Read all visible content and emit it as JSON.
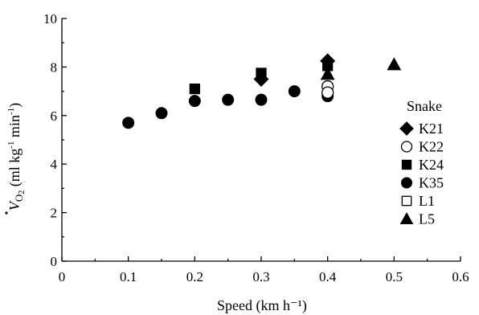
{
  "chart_data": {
    "type": "scatter",
    "xlabel": "Speed (km h⁻¹)",
    "ylabel_parts": [
      "V",
      "O",
      "2",
      " (ml kg",
      "-1",
      " min",
      "-1",
      ")"
    ],
    "xlim": [
      0,
      0.6
    ],
    "ylim": [
      0,
      10
    ],
    "xticks": [
      "0",
      "0.1",
      "0.2",
      "0.3",
      "0.4",
      "0.5",
      "0.6"
    ],
    "yticks": [
      "0",
      "2",
      "4",
      "6",
      "8",
      "10"
    ],
    "grid": false,
    "legend_title": "Snake",
    "legend_position": "right",
    "series": [
      {
        "name": "K21",
        "marker": "diamond-filled",
        "points": [
          [
            0.3,
            7.5
          ],
          [
            0.4,
            8.25
          ]
        ]
      },
      {
        "name": "K22",
        "marker": "circle-open",
        "points": [
          [
            0.4,
            7.2
          ],
          [
            0.4,
            6.95
          ]
        ]
      },
      {
        "name": "K24",
        "marker": "square-filled",
        "points": [
          [
            0.2,
            7.1
          ],
          [
            0.3,
            7.75
          ],
          [
            0.4,
            8.05
          ]
        ]
      },
      {
        "name": "K35",
        "marker": "circle-filled",
        "points": [
          [
            0.1,
            5.7
          ],
          [
            0.15,
            6.1
          ],
          [
            0.2,
            6.6
          ],
          [
            0.25,
            6.65
          ],
          [
            0.3,
            6.65
          ],
          [
            0.35,
            7.0
          ],
          [
            0.4,
            6.8
          ]
        ]
      },
      {
        "name": "L1",
        "marker": "square-open",
        "points": []
      },
      {
        "name": "L5",
        "marker": "triangle-filled",
        "points": [
          [
            0.4,
            7.7
          ],
          [
            0.5,
            8.1
          ]
        ]
      }
    ]
  }
}
